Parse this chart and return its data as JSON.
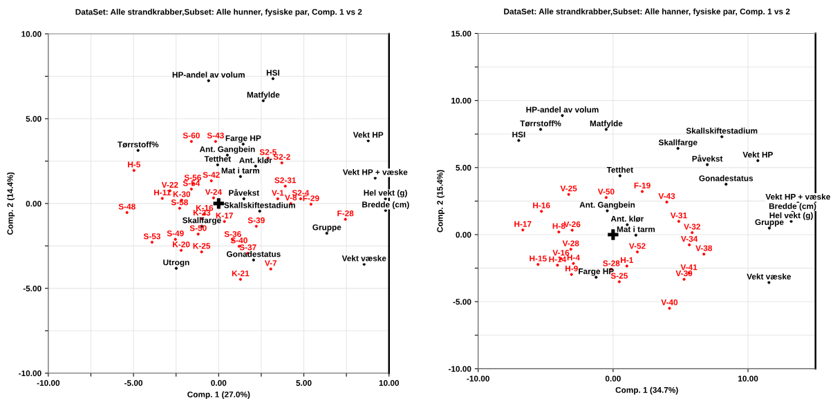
{
  "chart_data": [
    {
      "type": "scatter",
      "title": "DataSet: Alle strandkrabber,Subset: Alle hunner, fysiske par, Comp. 1 vs 2",
      "xlabel": "Comp. 1 (27.0%)",
      "ylabel": "Comp. 2 (14.4%)",
      "xlim": [
        -10,
        10
      ],
      "ylim": [
        -10,
        10
      ],
      "xticks": [
        {
          "value": -10,
          "label": "-10.00"
        },
        {
          "value": -7.5,
          "label": null
        },
        {
          "value": -5,
          "label": "-5.00"
        },
        {
          "value": -2.5,
          "label": null
        },
        {
          "value": 0,
          "label": "0.00"
        },
        {
          "value": 2.5,
          "label": null
        },
        {
          "value": 5,
          "label": "5.00"
        },
        {
          "value": 7.5,
          "label": null
        },
        {
          "value": 10,
          "label": "10.00"
        }
      ],
      "yticks": [
        {
          "value": -10,
          "label": "-10.00"
        },
        {
          "value": -7.5,
          "label": null
        },
        {
          "value": -5,
          "label": "-5.00"
        },
        {
          "value": -2.5,
          "label": null
        },
        {
          "value": 0,
          "label": "0.00"
        },
        {
          "value": 2.5,
          "label": null
        },
        {
          "value": 5,
          "label": "5.00"
        },
        {
          "value": 7.5,
          "label": null
        },
        {
          "value": 10,
          "label": "10.00"
        }
      ],
      "grid": true,
      "legend": false,
      "series": [
        {
          "color": "#000000",
          "marker": "circle",
          "x": [
            -0.59,
            3.19,
            2.62,
            -4.73,
            1.44,
            0.51,
            -0.06,
            2.17,
            1.28,
            1.48,
            2.41,
            -0.99,
            6.35,
            -2.49,
            2.05,
            8.78,
            9.19,
            9.79,
            9.8,
            8.54
          ],
          "values": [
            7.24,
            7.36,
            6.06,
            3.13,
            3.5,
            2.85,
            2.28,
            2.2,
            1.59,
            0.28,
            -0.45,
            -1.34,
            -1.75,
            -3.82,
            -3.33,
            3.7,
            1.5,
            0.28,
            -0.41,
            -3.58
          ],
          "value_labels": [
            "HP-andel av volum",
            "HSI",
            "Matfylde",
            "Tørrstoff%",
            "Farge HP",
            "Ant. Gangbein",
            "Tetthet",
            "Ant. klør",
            "Mat i tarm",
            "Påvekst",
            "Skallskiftestadium",
            "Skallfarge",
            "Gruppe",
            "Utrogn",
            "Gonadestatus",
            "Vekt HP",
            "Vekt HP + væske",
            "Hel vekt (g)",
            "Bredde (cm)",
            "Vekt væske"
          ]
        },
        {
          "color": "#ff0000",
          "marker": "circle",
          "x": [
            -1.6,
            -0.18,
            -4.97,
            -2.86,
            -3.31,
            -2.17,
            -5.38,
            -1.6,
            -1.52,
            -0.43,
            -0.3,
            -2.29,
            -0.83,
            -0.99,
            0.34,
            -1.2,
            2.21,
            -3.91,
            -2.54,
            -2.2,
            -1.0,
            0.83,
            1.2,
            1.72,
            3.06,
            1.28,
            3.71,
            2.9,
            3.91,
            3.47,
            4.81,
            4.24,
            5.42,
            7.44
          ],
          "values": [
            3.66,
            3.66,
            1.95,
            0.75,
            0.3,
            0.2,
            -0.53,
            0.85,
            1.18,
            1.34,
            0.33,
            -0.28,
            -0.61,
            -0.89,
            -1.06,
            -1.8,
            -1.34,
            -2.28,
            -2.11,
            -2.76,
            -2.85,
            -2.15,
            -2.52,
            -2.93,
            -3.86,
            -4.47,
            2.4,
            2.68,
            1.02,
            0.28,
            0.28,
            0,
            -0.04,
            -0.93
          ],
          "value_labels": [
            "S-60",
            "S-43",
            "H-5",
            "V-22",
            "H-11",
            "K-30",
            "S-48",
            "S-54",
            "S-56",
            "S-42",
            "V-24",
            "S-58",
            "K-16",
            "K-23",
            "K-17",
            "S-50",
            "S-39",
            "S-53",
            "S-49",
            "K-20",
            "K-25",
            "S-36",
            "S-40",
            "S-37",
            "V-7",
            "K-21",
            "S2-2",
            "S2-5",
            "S2-31",
            "V-1",
            "S2-4",
            "V-8",
            "F-29",
            "F-28"
          ]
        },
        {
          "color": "#000000",
          "marker": "cross",
          "x": [
            0
          ],
          "values": [
            0
          ]
        }
      ]
    },
    {
      "type": "scatter",
      "title": "DataSet: Alle strandkrabber,Subset: Alle hanner, fysiske par, Comp. 1 vs 2",
      "xlabel": "Comp. 1 (34.7%)",
      "ylabel": "Comp. 2 (15.4%)",
      "xlim": [
        -10,
        15
      ],
      "ylim": [
        -10,
        15
      ],
      "xticks": [
        {
          "value": -10,
          "label": "-10.00"
        },
        {
          "value": 0,
          "label": "0.00"
        },
        {
          "value": 10,
          "label": "10.00"
        }
      ],
      "yticks": [
        {
          "value": -10,
          "label": "-10.00"
        },
        {
          "value": -7.5,
          "label": null
        },
        {
          "value": -5,
          "label": "-5.00"
        },
        {
          "value": -2.5,
          "label": null
        },
        {
          "value": 0,
          "label": "0.00"
        },
        {
          "value": 2.5,
          "label": null
        },
        {
          "value": 5,
          "label": "5.00"
        },
        {
          "value": 7.5,
          "label": null
        },
        {
          "value": 10,
          "label": "10.00"
        },
        {
          "value": 12.5,
          "label": null
        },
        {
          "value": 15,
          "label": "15.00"
        }
      ],
      "grid": true,
      "legend": false,
      "series": [
        {
          "color": "#000000",
          "marker": "circle",
          "x": [
            -3.76,
            -5.37,
            -0.51,
            -6.99,
            8.06,
            4.81,
            6.98,
            10.73,
            0.51,
            8.37,
            13.7,
            13.3,
            13.2,
            11.58,
            -0.43,
            1.05,
            1.69,
            -1.26,
            11.55
          ],
          "values": [
            8.88,
            7.85,
            7.85,
            7.02,
            7.3,
            6.43,
            5.22,
            5.52,
            4.39,
            3.76,
            2.38,
            1.68,
            0.99,
            0.49,
            1.78,
            0.74,
            -0.04,
            -3.18,
            -3.57
          ],
          "value_labels": [
            "HP-andel av volum",
            "Tørrstoff%",
            "Matfylde",
            "HSI",
            "Skallskiftestadium",
            "Skallfarge",
            "Påvekst",
            "Vekt HP",
            "Tetthet",
            "Gonadestatus",
            "Vekt HP + væske",
            "Bredde (cm)",
            "Hel vekt (g)",
            "Gruppe",
            "Ant. Gangbein",
            "Ant. klør",
            "Mat i tarm",
            "Farge HP",
            "Vekt væske"
          ]
        },
        {
          "color": "#ff0000",
          "marker": "circle",
          "x": [
            -3.29,
            -0.51,
            2.16,
            3.98,
            -5.31,
            -6.69,
            -4.02,
            -3.03,
            4.87,
            5.86,
            -3.13,
            1.8,
            5.65,
            6.73,
            -3.86,
            -5.56,
            -4.12,
            -2.94,
            -0.13,
            1.02,
            -3.08,
            0.46,
            5.62,
            5.26,
            4.18
          ],
          "values": [
            3.0,
            2.77,
            3.22,
            2.43,
            1.74,
            0.35,
            0.2,
            0.33,
            0.99,
            0.15,
            -1.09,
            -1.29,
            -0.76,
            -1.45,
            -1.79,
            -2.22,
            -2.28,
            -2.15,
            -2.58,
            -2.34,
            -2.97,
            -3.51,
            -2.87,
            -3.33,
            -5.49
          ],
          "value_labels": [
            "V-25",
            "V-50",
            "F-19",
            "V-43",
            "H-16",
            "H-17",
            "H-8",
            "V-26",
            "V-31",
            "V-32",
            "V-28",
            "V-52",
            "V-34",
            "V-38",
            "V-16",
            "H-15",
            "H-14",
            "H-4",
            "S-28",
            "H-1",
            "H-9",
            "S-25",
            "V-41",
            "V-39",
            "V-40"
          ]
        },
        {
          "color": "#000000",
          "marker": "cross",
          "x": [
            0
          ],
          "values": [
            0
          ]
        }
      ]
    }
  ]
}
